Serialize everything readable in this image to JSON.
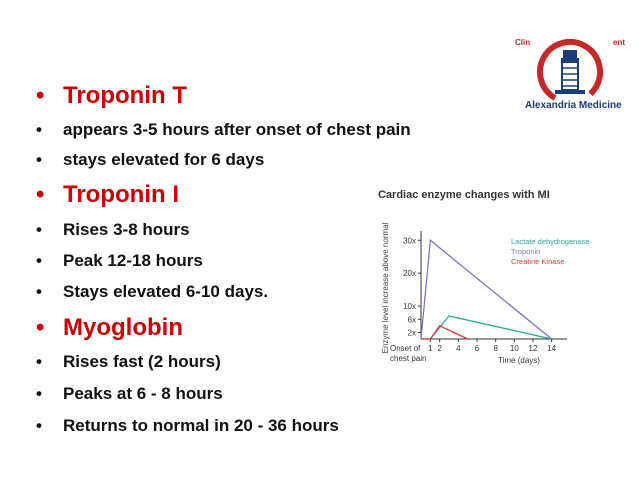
{
  "logo": {
    "left_text": "Clin",
    "right_text": "ent",
    "name": "Alexandria Medicine",
    "colors": {
      "ring": "#c62828",
      "text": "#1a3c78"
    }
  },
  "bullets": [
    {
      "level": "head",
      "text": "Troponin T"
    },
    {
      "level": "sub",
      "text": "appears 3-5 hours after onset of chest pain"
    },
    {
      "level": "sub",
      "text": "stays elevated for 6 days"
    },
    {
      "level": "head",
      "text": "Troponin I"
    },
    {
      "level": "sub",
      "text": "Rises 3-8 hours"
    },
    {
      "level": "sub",
      "text": "Peak 12-18 hours"
    },
    {
      "level": "sub",
      "text": "Stays elevated 6-10 days."
    },
    {
      "level": "head",
      "text": "Myoglobin"
    },
    {
      "level": "sub",
      "text": "Rises fast (2 hours)"
    },
    {
      "level": "sub",
      "text": "Peaks at 6 - 8 hours"
    },
    {
      "level": "sub",
      "text": "Returns to normal in 20 - 36 hours"
    }
  ],
  "colors": {
    "heading": "#cc0000",
    "body": "#111111"
  },
  "chart_data": {
    "type": "line",
    "title": "Cardiac enzyme changes with MI",
    "xlabel": "Time (days)",
    "ylabel": "Enzyme level increase above normal",
    "x_origin_label": "Onset of chest pain",
    "xticks": [
      1,
      2,
      4,
      6,
      8,
      10,
      12,
      14
    ],
    "yticks": [
      {
        "value": 2,
        "label": "2x"
      },
      {
        "value": 6,
        "label": "6x"
      },
      {
        "value": 10,
        "label": "10x"
      },
      {
        "value": 20,
        "label": "20x"
      },
      {
        "value": 30,
        "label": "30x"
      }
    ],
    "xlim": [
      0,
      15
    ],
    "ylim": [
      0,
      31
    ],
    "legend_position": "top-right",
    "series": [
      {
        "name": "Lactate dehydrogenase",
        "color": "#2aa89a",
        "x": [
          0,
          1,
          3,
          14
        ],
        "y": [
          0,
          0,
          7,
          0
        ]
      },
      {
        "name": "Troponin",
        "color": "#7b74c9",
        "x": [
          0,
          1,
          14
        ],
        "y": [
          0,
          30,
          0
        ]
      },
      {
        "name": "Creatine Kinase",
        "color": "#e23b3b",
        "x": [
          0,
          1,
          2,
          5
        ],
        "y": [
          0,
          0,
          4,
          0
        ]
      }
    ]
  }
}
